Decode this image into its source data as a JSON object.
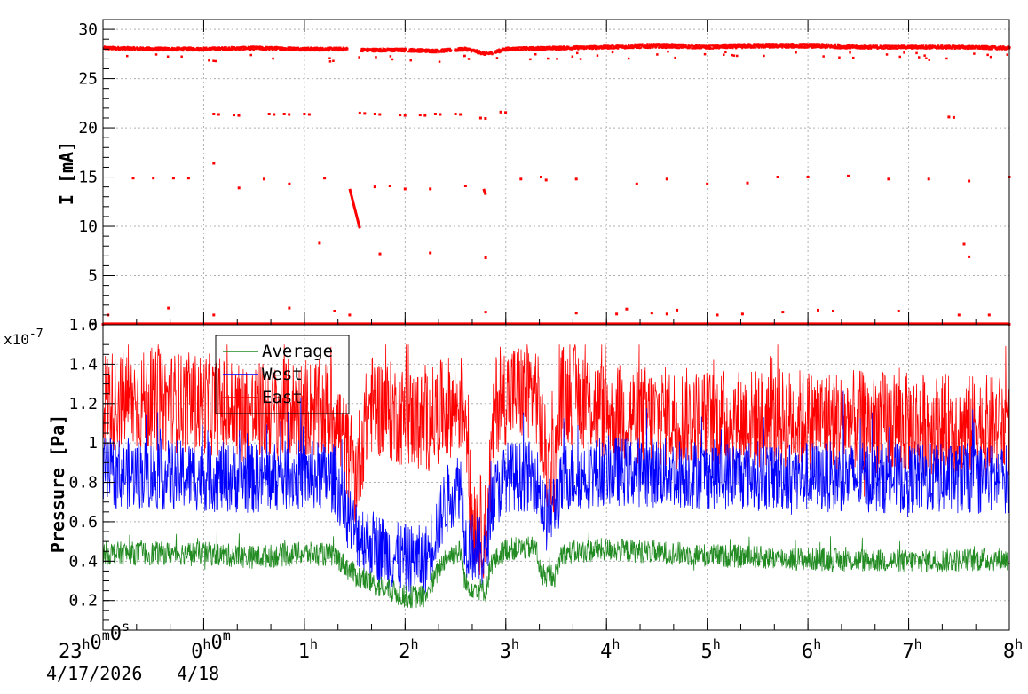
{
  "chart_data": [
    {
      "type": "scatter",
      "title": "",
      "ylabel": "I [mA]",
      "xlim_hours": [
        -1,
        8
      ],
      "ylim": [
        0,
        31
      ],
      "yticks": [
        0,
        5,
        10,
        15,
        20,
        25,
        30
      ],
      "ytick_labels": [
        "0",
        "5",
        "10",
        "15",
        "20",
        "25",
        "30"
      ],
      "grid": true,
      "color": "#ff0000",
      "series": [
        {
          "values_description_points": [
            [
              -1.0,
              28.1
            ],
            [
              -0.5,
              28.0
            ],
            [
              0.0,
              28.0
            ],
            [
              0.5,
              28.1
            ],
            [
              1.0,
              28.0
            ],
            [
              1.4,
              28.0
            ],
            [
              1.6,
              27.9
            ],
            [
              2.0,
              27.9
            ],
            [
              2.3,
              27.8
            ],
            [
              2.6,
              28.0
            ],
            [
              2.8,
              27.5
            ],
            [
              3.0,
              28.0
            ],
            [
              3.5,
              28.1
            ],
            [
              4.0,
              28.2
            ],
            [
              4.5,
              28.3
            ],
            [
              5.0,
              28.2
            ],
            [
              5.5,
              28.3
            ],
            [
              6.0,
              28.3
            ],
            [
              6.5,
              28.2
            ],
            [
              7.0,
              28.2
            ],
            [
              7.5,
              28.2
            ],
            [
              8.0,
              28.1
            ]
          ],
          "sparse_points": [
            [
              0.1,
              21.4
            ],
            [
              0.3,
              21.3
            ],
            [
              0.65,
              21.4
            ],
            [
              0.8,
              21.4
            ],
            [
              1.0,
              21.4
            ],
            [
              1.55,
              21.5
            ],
            [
              1.7,
              21.4
            ],
            [
              1.95,
              21.3
            ],
            [
              2.15,
              21.3
            ],
            [
              2.3,
              21.4
            ],
            [
              2.5,
              21.4
            ],
            [
              2.75,
              21.0
            ],
            [
              2.95,
              21.6
            ],
            [
              7.4,
              21.1
            ],
            [
              -0.7,
              14.9
            ],
            [
              -0.5,
              14.9
            ],
            [
              -0.3,
              14.9
            ],
            [
              -0.15,
              14.9
            ],
            [
              0.35,
              13.9
            ],
            [
              0.6,
              14.8
            ],
            [
              0.85,
              14.3
            ],
            [
              1.2,
              14.9
            ],
            [
              1.7,
              14.0
            ],
            [
              1.85,
              14.1
            ],
            [
              2.0,
              13.8
            ],
            [
              2.25,
              13.8
            ],
            [
              2.6,
              14.1
            ],
            [
              3.15,
              14.8
            ],
            [
              3.35,
              15.0
            ],
            [
              3.4,
              14.7
            ],
            [
              3.7,
              14.8
            ],
            [
              4.3,
              14.3
            ],
            [
              4.6,
              14.8
            ],
            [
              5.0,
              14.3
            ],
            [
              5.4,
              14.4
            ],
            [
              5.7,
              15.0
            ],
            [
              6.0,
              15.0
            ],
            [
              6.4,
              15.1
            ],
            [
              6.8,
              14.8
            ],
            [
              7.2,
              14.8
            ],
            [
              7.6,
              14.6
            ],
            [
              8.0,
              15.0
            ],
            [
              0.1,
              16.4
            ],
            [
              1.15,
              8.3
            ],
            [
              1.75,
              7.2
            ],
            [
              2.25,
              7.3
            ],
            [
              2.8,
              6.8
            ],
            [
              7.55,
              8.2
            ],
            [
              7.6,
              6.9
            ],
            [
              -0.95,
              1.0
            ],
            [
              -0.35,
              1.7
            ],
            [
              0.1,
              1.0
            ],
            [
              0.85,
              1.7
            ],
            [
              1.3,
              1.4
            ],
            [
              1.45,
              1.0
            ],
            [
              2.8,
              1.3
            ],
            [
              3.7,
              1.2
            ],
            [
              4.1,
              1.1
            ],
            [
              4.2,
              1.6
            ],
            [
              4.45,
              1.2
            ],
            [
              4.6,
              1.1
            ],
            [
              4.7,
              1.5
            ],
            [
              5.1,
              1.0
            ],
            [
              5.35,
              1.1
            ],
            [
              5.75,
              1.3
            ],
            [
              6.1,
              1.5
            ],
            [
              6.25,
              1.4
            ],
            [
              6.9,
              1.4
            ],
            [
              7.5,
              1.0
            ],
            [
              7.8,
              1.0
            ],
            [
              -1.0,
              0.05
            ],
            [
              8.0,
              0.05
            ]
          ],
          "decay_segment": [
            [
              1.45,
              13.8
            ],
            [
              1.55,
              9.8
            ]
          ],
          "cluster_2_8": [
            [
              2.78,
              13.8
            ],
            [
              2.8,
              13.2
            ]
          ]
        }
      ]
    },
    {
      "type": "line",
      "title": "",
      "ylabel": "Pressure [Pa]",
      "y_exponent_label": "x10",
      "y_exponent_power": "-7",
      "xlim_hours": [
        -1,
        8
      ],
      "ylim": [
        0.05,
        1.6
      ],
      "yticks": [
        0.2,
        0.4,
        0.6,
        0.8,
        1.0,
        1.2,
        1.4,
        1.6
      ],
      "ytick_labels": [
        "0.2",
        "0.4",
        "0.6",
        "0.8",
        "1",
        "1.2",
        "1.4",
        "1.6"
      ],
      "grid": true,
      "legend_position": "top-left",
      "series": [
        {
          "name": "Average",
          "color": "#228b22",
          "baseline": [
            [
              -1.0,
              0.44
            ],
            [
              0.0,
              0.44
            ],
            [
              0.5,
              0.42
            ],
            [
              1.0,
              0.44
            ],
            [
              1.3,
              0.43
            ],
            [
              1.5,
              0.33
            ],
            [
              1.7,
              0.28
            ],
            [
              2.0,
              0.22
            ],
            [
              2.2,
              0.22
            ],
            [
              2.4,
              0.42
            ],
            [
              2.55,
              0.45
            ],
            [
              2.6,
              0.28
            ],
            [
              2.8,
              0.25
            ],
            [
              2.85,
              0.38
            ],
            [
              3.0,
              0.46
            ],
            [
              3.3,
              0.47
            ],
            [
              3.35,
              0.33
            ],
            [
              3.5,
              0.33
            ],
            [
              3.55,
              0.44
            ],
            [
              4.0,
              0.46
            ],
            [
              5.0,
              0.43
            ],
            [
              6.0,
              0.41
            ],
            [
              7.0,
              0.4
            ],
            [
              8.0,
              0.41
            ]
          ]
        },
        {
          "name": "West",
          "color": "#0000ff",
          "baseline": [
            [
              -1.0,
              0.85
            ],
            [
              0.0,
              0.83
            ],
            [
              0.5,
              0.82
            ],
            [
              1.0,
              0.84
            ],
            [
              1.3,
              0.82
            ],
            [
              1.5,
              0.55
            ],
            [
              1.7,
              0.48
            ],
            [
              1.9,
              0.42
            ],
            [
              2.2,
              0.4
            ],
            [
              2.4,
              0.7
            ],
            [
              2.55,
              0.8
            ],
            [
              2.6,
              0.5
            ],
            [
              2.8,
              0.42
            ],
            [
              2.85,
              0.7
            ],
            [
              3.0,
              0.83
            ],
            [
              3.3,
              0.83
            ],
            [
              3.4,
              0.62
            ],
            [
              3.5,
              0.7
            ],
            [
              3.6,
              0.83
            ],
            [
              4.0,
              0.86
            ],
            [
              5.0,
              0.84
            ],
            [
              6.0,
              0.83
            ],
            [
              7.0,
              0.82
            ],
            [
              8.0,
              0.82
            ]
          ]
        },
        {
          "name": "East",
          "color": "#ff0000",
          "baseline": [
            [
              -1.0,
              1.22
            ],
            [
              0.0,
              1.2
            ],
            [
              0.5,
              1.15
            ],
            [
              1.0,
              1.18
            ],
            [
              1.3,
              1.15
            ],
            [
              1.5,
              0.82
            ],
            [
              1.65,
              1.2
            ],
            [
              1.9,
              1.15
            ],
            [
              2.2,
              1.1
            ],
            [
              2.4,
              1.18
            ],
            [
              2.6,
              1.2
            ],
            [
              2.65,
              0.65
            ],
            [
              2.8,
              0.55
            ],
            [
              2.9,
              1.2
            ],
            [
              3.0,
              1.25
            ],
            [
              3.3,
              1.26
            ],
            [
              3.4,
              0.9
            ],
            [
              3.5,
              0.9
            ],
            [
              3.55,
              1.24
            ],
            [
              3.7,
              1.25
            ],
            [
              4.0,
              1.15
            ],
            [
              5.0,
              1.12
            ],
            [
              6.0,
              1.12
            ],
            [
              7.0,
              1.1
            ],
            [
              8.0,
              1.08
            ]
          ]
        }
      ]
    }
  ],
  "x_axis": {
    "ticks": [
      {
        "hour": -1,
        "main": "23",
        "sup1": "h",
        "mid": "0",
        "sup2": "m",
        "end": "0",
        "sup3": "s"
      },
      {
        "hour": 0,
        "main": "0",
        "sup1": "h",
        "mid": "0",
        "sup2": "m",
        "end": "",
        "sup3": ""
      },
      {
        "hour": 1,
        "main": "1",
        "sup1": "h"
      },
      {
        "hour": 2,
        "main": "2",
        "sup1": "h"
      },
      {
        "hour": 3,
        "main": "3",
        "sup1": "h"
      },
      {
        "hour": 4,
        "main": "4",
        "sup1": "h"
      },
      {
        "hour": 5,
        "main": "5",
        "sup1": "h"
      },
      {
        "hour": 6,
        "main": "6",
        "sup1": "h"
      },
      {
        "hour": 7,
        "main": "7",
        "sup1": "h"
      },
      {
        "hour": 8,
        "main": "8",
        "sup1": "h"
      }
    ],
    "date_labels": [
      "4/17/2026",
      "4/18"
    ]
  },
  "legend": {
    "items": [
      "Average",
      "West",
      "East"
    ]
  }
}
